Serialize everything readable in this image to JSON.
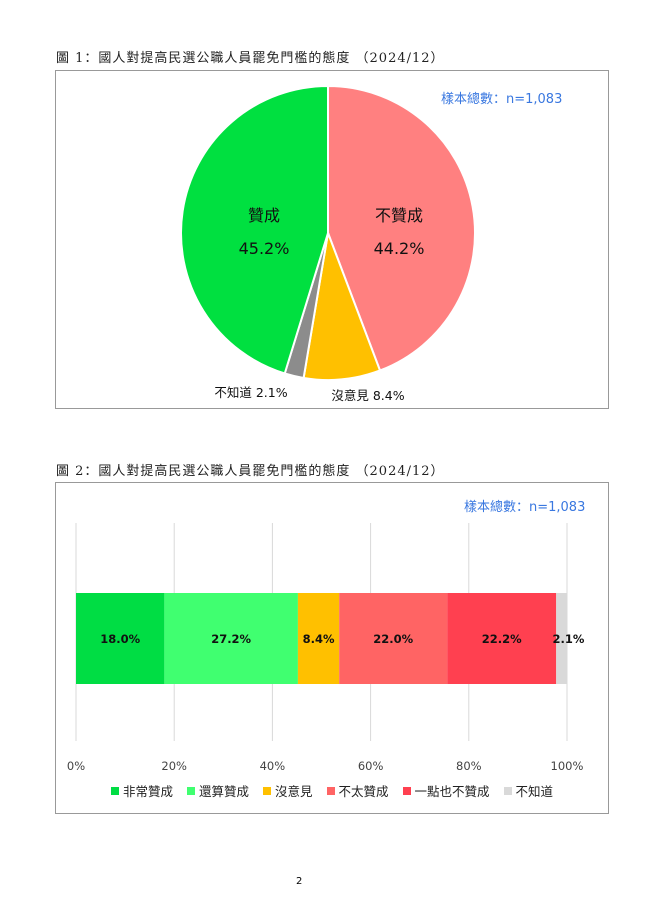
{
  "figure1": {
    "caption": "圖 1：國人對提高民選公職人員罷免門檻的態度 （2024/12）",
    "sample": "樣本總數：n=1,083",
    "chart_data": {
      "type": "pie",
      "slices": [
        {
          "label": "不贊成",
          "value": 44.2,
          "text": "44.2%",
          "color": "#ff8080"
        },
        {
          "label": "沒意見",
          "value": 8.4,
          "text": "沒意見 8.4%",
          "color": "#ffc000"
        },
        {
          "label": "不知道",
          "value": 2.1,
          "text": "不知道 2.1%",
          "color": "#8c8c8c"
        },
        {
          "label": "贊成",
          "value": 45.2,
          "text": "45.2%",
          "color": "#00e040"
        }
      ]
    }
  },
  "figure2": {
    "caption": "圖 2：國人對提高民選公職人員罷免門檻的態度 （2024/12）",
    "sample": "樣本總數：n=1,083",
    "chart_data": {
      "type": "bar",
      "orientation": "horizontal-stacked-100",
      "xlim": [
        0,
        100
      ],
      "ticks": [
        "0%",
        "20%",
        "40%",
        "60%",
        "80%",
        "100%"
      ],
      "grid": true,
      "legend": "bottom",
      "series": [
        {
          "name": "非常贊成",
          "value": 18.0,
          "label": "18.0%",
          "color": "#00dd44"
        },
        {
          "name": "還算贊成",
          "value": 27.2,
          "label": "27.2%",
          "color": "#40ff70"
        },
        {
          "name": "沒意見",
          "value": 8.4,
          "label": "8.4%",
          "color": "#ffc000"
        },
        {
          "name": "不太贊成",
          "value": 22.0,
          "label": "22.0%",
          "color": "#ff6464"
        },
        {
          "name": "一點也不贊成",
          "value": 22.2,
          "label": "22.2%",
          "color": "#ff4050"
        },
        {
          "name": "不知道",
          "value": 2.1,
          "label": "2.1%",
          "color": "#d9d9d9"
        }
      ]
    }
  },
  "page_number": "2"
}
